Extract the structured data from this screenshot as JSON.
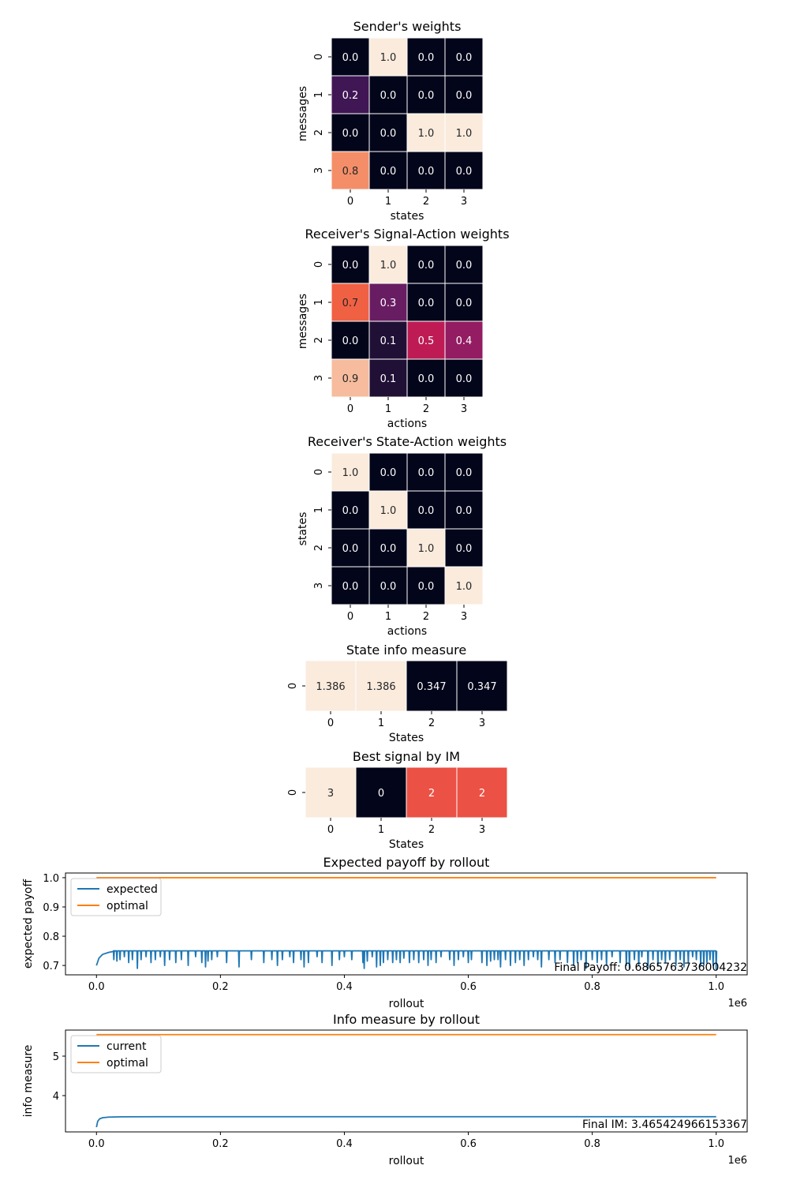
{
  "chart_data": [
    {
      "type": "heatmap",
      "title": "Sender's weights",
      "xlabel": "states",
      "ylabel": "messages",
      "x_ticks": [
        "0",
        "1",
        "2",
        "3"
      ],
      "y_ticks": [
        "0",
        "1",
        "2",
        "3"
      ],
      "values": [
        [
          0.0,
          1.0,
          0.0,
          0.0
        ],
        [
          0.2,
          0.0,
          0.0,
          0.0
        ],
        [
          0.0,
          0.0,
          1.0,
          1.0
        ],
        [
          0.8,
          0.0,
          0.0,
          0.0
        ]
      ],
      "labels": [
        [
          "0.0",
          "1.0",
          "0.0",
          "0.0"
        ],
        [
          "0.2",
          "0.0",
          "0.0",
          "0.0"
        ],
        [
          "0.0",
          "0.0",
          "1.0",
          "1.0"
        ],
        [
          "0.8",
          "0.0",
          "0.0",
          "0.0"
        ]
      ]
    },
    {
      "type": "heatmap",
      "title": "Receiver's Signal-Action weights",
      "xlabel": "actions",
      "ylabel": "messages",
      "x_ticks": [
        "0",
        "1",
        "2",
        "3"
      ],
      "y_ticks": [
        "0",
        "1",
        "2",
        "3"
      ],
      "values": [
        [
          0.0,
          1.0,
          0.0,
          0.0
        ],
        [
          0.7,
          0.3,
          0.0,
          0.0
        ],
        [
          0.0,
          0.1,
          0.5,
          0.4
        ],
        [
          0.9,
          0.1,
          0.0,
          0.0
        ]
      ],
      "labels": [
        [
          "0.0",
          "1.0",
          "0.0",
          "0.0"
        ],
        [
          "0.7",
          "0.3",
          "0.0",
          "0.0"
        ],
        [
          "0.0",
          "0.1",
          "0.5",
          "0.4"
        ],
        [
          "0.9",
          "0.1",
          "0.0",
          "0.0"
        ]
      ]
    },
    {
      "type": "heatmap",
      "title": "Receiver's State-Action weights",
      "xlabel": "actions",
      "ylabel": "states",
      "x_ticks": [
        "0",
        "1",
        "2",
        "3"
      ],
      "y_ticks": [
        "0",
        "1",
        "2",
        "3"
      ],
      "values": [
        [
          1.0,
          0.0,
          0.0,
          0.0
        ],
        [
          0.0,
          1.0,
          0.0,
          0.0
        ],
        [
          0.0,
          0.0,
          1.0,
          0.0
        ],
        [
          0.0,
          0.0,
          0.0,
          1.0
        ]
      ],
      "labels": [
        [
          "1.0",
          "0.0",
          "0.0",
          "0.0"
        ],
        [
          "0.0",
          "1.0",
          "0.0",
          "0.0"
        ],
        [
          "0.0",
          "0.0",
          "1.0",
          "0.0"
        ],
        [
          "0.0",
          "0.0",
          "0.0",
          "1.0"
        ]
      ]
    },
    {
      "type": "heatmap",
      "title": "State info measure",
      "xlabel": "States",
      "ylabel": "",
      "x_ticks": [
        "0",
        "1",
        "2",
        "3"
      ],
      "y_ticks": [
        "0"
      ],
      "values": [
        [
          1.386,
          1.386,
          0.347,
          0.347
        ]
      ],
      "labels": [
        [
          "1.386",
          "1.386",
          "0.347",
          "0.347"
        ]
      ]
    },
    {
      "type": "heatmap",
      "title": "Best signal by IM",
      "xlabel": "States",
      "ylabel": "",
      "x_ticks": [
        "0",
        "1",
        "2",
        "3"
      ],
      "y_ticks": [
        "0"
      ],
      "values": [
        [
          3,
          0,
          2,
          2
        ]
      ],
      "labels": [
        [
          "3",
          "0",
          "2",
          "2"
        ]
      ]
    },
    {
      "type": "line",
      "title": "Expected payoff by rollout",
      "xlabel": "rollout",
      "ylabel": "expected payoff",
      "xlim": [
        -50000,
        1050000
      ],
      "ylim": [
        0.668,
        1.016
      ],
      "x_ticks": [
        0,
        200000,
        400000,
        600000,
        800000,
        1000000
      ],
      "x_tick_labels": [
        "0.0",
        "0.2",
        "0.4",
        "0.6",
        "0.8",
        "1.0"
      ],
      "x_offset_label": "1e6",
      "y_ticks": [
        0.7,
        0.8,
        0.9,
        1.0
      ],
      "y_tick_labels": [
        "0.7",
        "0.8",
        "0.9",
        "1.0"
      ],
      "legend_position": "upper-left",
      "series": [
        {
          "name": "expected",
          "color": "#1f77b4",
          "baseline": 0.75,
          "start": [
            [
              0,
              0.7
            ],
            [
              4000,
              0.725
            ],
            [
              10000,
              0.738
            ],
            [
              20000,
              0.745
            ],
            [
              30000,
              0.749
            ]
          ],
          "dips": [
            [
              28000,
              0.72
            ],
            [
              33000,
              0.715
            ],
            [
              38000,
              0.72
            ],
            [
              45000,
              0.73
            ],
            [
              52000,
              0.71
            ],
            [
              58000,
              0.72
            ],
            [
              66000,
              0.69
            ],
            [
              72000,
              0.72
            ],
            [
              80000,
              0.73
            ],
            [
              88000,
              0.71
            ],
            [
              95000,
              0.72
            ],
            [
              103000,
              0.73
            ],
            [
              110000,
              0.7
            ],
            [
              118000,
              0.72
            ],
            [
              128000,
              0.71
            ],
            [
              137000,
              0.72
            ],
            [
              148000,
              0.7
            ],
            [
              160000,
              0.73
            ],
            [
              170000,
              0.71
            ],
            [
              176000,
              0.695
            ],
            [
              180000,
              0.715
            ],
            [
              186000,
              0.72
            ],
            [
              195000,
              0.73
            ],
            [
              210000,
              0.71
            ],
            [
              230000,
              0.695
            ],
            [
              250000,
              0.72
            ],
            [
              270000,
              0.71
            ],
            [
              283000,
              0.72
            ],
            [
              292000,
              0.7
            ],
            [
              300000,
              0.72
            ],
            [
              312000,
              0.73
            ],
            [
              318000,
              0.71
            ],
            [
              330000,
              0.72
            ],
            [
              335000,
              0.695
            ],
            [
              342000,
              0.71
            ],
            [
              356000,
              0.73
            ],
            [
              364000,
              0.71
            ],
            [
              380000,
              0.7
            ],
            [
              392000,
              0.72
            ],
            [
              400000,
              0.73
            ],
            [
              412000,
              0.72
            ],
            [
              430000,
              0.71
            ],
            [
              432000,
              0.69
            ],
            [
              437000,
              0.715
            ],
            [
              445000,
              0.73
            ],
            [
              452000,
              0.695
            ],
            [
              458000,
              0.7
            ],
            [
              463000,
              0.71
            ],
            [
              470000,
              0.72
            ],
            [
              478000,
              0.71
            ],
            [
              484000,
              0.72
            ],
            [
              490000,
              0.71
            ],
            [
              496000,
              0.725
            ],
            [
              505000,
              0.71
            ],
            [
              512000,
              0.72
            ],
            [
              520000,
              0.71
            ],
            [
              528000,
              0.72
            ],
            [
              535000,
              0.7
            ],
            [
              540000,
              0.72
            ],
            [
              548000,
              0.71
            ],
            [
              556000,
              0.73
            ],
            [
              570000,
              0.72
            ],
            [
              577000,
              0.7
            ],
            [
              584000,
              0.72
            ],
            [
              592000,
              0.73
            ],
            [
              600000,
              0.71
            ],
            [
              605000,
              0.72
            ],
            [
              622000,
              0.71
            ],
            [
              630000,
              0.7
            ],
            [
              636000,
              0.715
            ],
            [
              642000,
              0.72
            ],
            [
              648000,
              0.72
            ],
            [
              652000,
              0.695
            ],
            [
              660000,
              0.72
            ],
            [
              668000,
              0.7
            ],
            [
              676000,
              0.71
            ],
            [
              683000,
              0.72
            ],
            [
              690000,
              0.7
            ],
            [
              697000,
              0.72
            ],
            [
              705000,
              0.73
            ],
            [
              712000,
              0.72
            ],
            [
              718000,
              0.695
            ],
            [
              730000,
              0.72
            ],
            [
              740000,
              0.71
            ],
            [
              748000,
              0.72
            ],
            [
              760000,
              0.71
            ],
            [
              770000,
              0.7
            ],
            [
              776000,
              0.71
            ],
            [
              782000,
              0.72
            ],
            [
              790000,
              0.69
            ],
            [
              800000,
              0.72
            ],
            [
              808000,
              0.71
            ],
            [
              815000,
              0.72
            ],
            [
              823000,
              0.7
            ],
            [
              832000,
              0.73
            ],
            [
              845000,
              0.71
            ],
            [
              855000,
              0.7
            ],
            [
              860000,
              0.69
            ],
            [
              868000,
              0.72
            ],
            [
              875000,
              0.7
            ],
            [
              880000,
              0.73
            ],
            [
              890000,
              0.69
            ],
            [
              898000,
              0.72
            ],
            [
              906000,
              0.7
            ],
            [
              912000,
              0.72
            ],
            [
              918000,
              0.71
            ],
            [
              925000,
              0.72
            ],
            [
              935000,
              0.7
            ],
            [
              942000,
              0.72
            ],
            [
              948000,
              0.695
            ],
            [
              955000,
              0.71
            ],
            [
              962000,
              0.73
            ],
            [
              968000,
              0.72
            ],
            [
              975000,
              0.7
            ],
            [
              980000,
              0.7
            ],
            [
              985000,
              0.71
            ],
            [
              990000,
              0.72
            ],
            [
              995000,
              0.7
            ],
            [
              1000000,
              0.6866
            ]
          ]
        },
        {
          "name": "optimal",
          "color": "#ff7f0e",
          "points": [
            [
              0,
              1.0
            ],
            [
              1000000,
              1.0
            ]
          ]
        }
      ],
      "annotation": "Final Payoff: 0.6865763736004232"
    },
    {
      "type": "line",
      "title": "Info measure by rollout",
      "xlabel": "rollout",
      "ylabel": "info measure",
      "xlim": [
        -50000,
        1050000
      ],
      "ylim": [
        3.08,
        5.66
      ],
      "x_ticks": [
        0,
        200000,
        400000,
        600000,
        800000,
        1000000
      ],
      "x_tick_labels": [
        "0.0",
        "0.2",
        "0.4",
        "0.6",
        "0.8",
        "1.0"
      ],
      "x_offset_label": "1e6",
      "y_ticks": [
        4,
        5
      ],
      "y_tick_labels": [
        "4",
        "5"
      ],
      "legend_position": "upper-left",
      "series": [
        {
          "name": "current",
          "color": "#1f77b4",
          "points": [
            [
              0,
              3.2
            ],
            [
              2000,
              3.35
            ],
            [
              5000,
              3.41
            ],
            [
              10000,
              3.44
            ],
            [
              20000,
              3.455
            ],
            [
              40000,
              3.462
            ],
            [
              100000,
              3.465
            ],
            [
              1000000,
              3.4654
            ]
          ]
        },
        {
          "name": "optimal",
          "color": "#ff7f0e",
          "points": [
            [
              0,
              5.545
            ],
            [
              1000000,
              5.545
            ]
          ]
        }
      ],
      "annotation": "Final IM: 3.465424966153367"
    }
  ]
}
